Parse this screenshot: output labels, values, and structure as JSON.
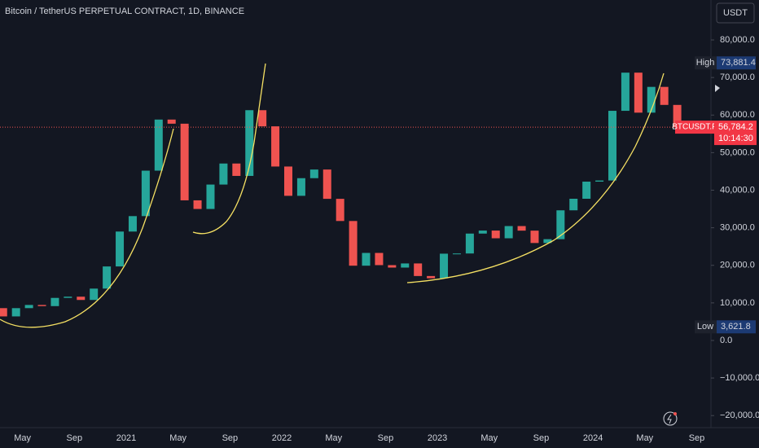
{
  "chart_data": {
    "type": "bar-series",
    "title": "Bitcoin / TetherUS PERPETUAL CONTRACT, 1D, BINANCE",
    "currency": "USDT",
    "categories": [
      null,
      null,
      null,
      "May",
      null,
      null,
      null,
      "Sep",
      null,
      null,
      null,
      "2021",
      null,
      null,
      null,
      "May",
      null,
      null,
      null,
      "Sep",
      null,
      null,
      null,
      "2022",
      null,
      null,
      null,
      "May",
      null,
      null,
      null,
      "Sep",
      null,
      null,
      null,
      "2023",
      null,
      null,
      null,
      "May",
      null,
      null,
      null,
      "Sep",
      null,
      null,
      null,
      "2024",
      null,
      null,
      null,
      "May",
      null,
      null,
      null,
      "Sep"
    ],
    "values": [
      8600,
      6400,
      8600,
      9450,
      9140,
      11330,
      11650,
      10780,
      13800,
      19700,
      28990,
      33100,
      45200,
      58800,
      57700,
      37300,
      35000,
      41500,
      47100,
      43800,
      61300,
      57000,
      46300,
      38500,
      43200,
      45500,
      37700,
      31800,
      19900,
      23300,
      20050,
      19400,
      20500,
      17150,
      16550,
      23100,
      23150,
      28450,
      29250,
      27200,
      30450,
      29230,
      25940,
      26960,
      34640,
      37720,
      42280,
      42580,
      61130,
      71290,
      60640,
      67500,
      62700,
      56784.2,
      null,
      null
    ],
    "up_color": "#26a69a",
    "down_color": "#ef5350",
    "ylim": [
      -23210,
      90630
    ],
    "yticks": [
      {
        "value": 80000,
        "label": "80,000.0"
      },
      {
        "value": 70000,
        "label": "70,000.0"
      },
      {
        "value": 60000,
        "label": "60,000.0"
      },
      {
        "value": 50000,
        "label": "50,000.0"
      },
      {
        "value": 40000,
        "label": "40,000.0"
      },
      {
        "value": 30000,
        "label": "30,000.0"
      },
      {
        "value": 20000,
        "label": "20,000.0"
      },
      {
        "value": 10000,
        "label": "10,000.0"
      },
      {
        "value": 0,
        "label": "0.0"
      },
      {
        "value": -10000,
        "label": "−10,000.0"
      },
      {
        "value": -20000,
        "label": "−20,000.0"
      }
    ],
    "grid": false,
    "high_label": "High",
    "high": {
      "value": 73881.4,
      "label": "73,881.4"
    },
    "low_label": "Low",
    "low": {
      "value": 3621.8,
      "label": "3,621.8"
    },
    "last_symbol": "BTCUSDT.P",
    "last_price": {
      "value": 56784.2,
      "label": "56,784.2"
    },
    "countdown": "10:14:30"
  }
}
